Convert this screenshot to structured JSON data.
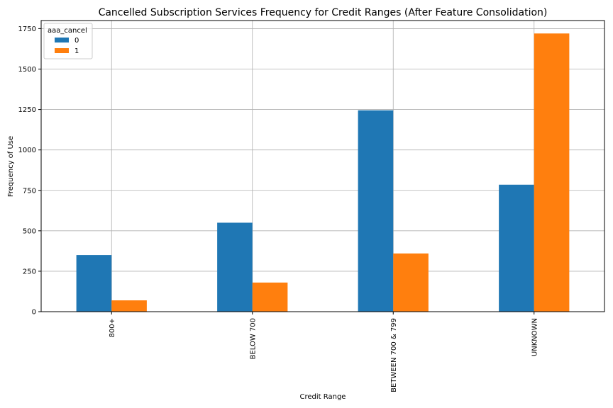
{
  "chart_data": {
    "type": "bar",
    "title": "Cancelled Subscription Services Frequency for Credit Ranges (After Feature Consolidation)",
    "xlabel": "Credit Range",
    "ylabel": "Frequency of Use",
    "categories": [
      "800+",
      "BELOW 700",
      "BETWEEN 700 & 799",
      "UNKNOWN"
    ],
    "series": [
      {
        "name": "0",
        "values": [
          350,
          550,
          1245,
          785
        ],
        "color": "#1f77b4"
      },
      {
        "name": "1",
        "values": [
          70,
          180,
          360,
          1720
        ],
        "color": "#ff7f0e"
      }
    ],
    "ylim": [
      0,
      1800
    ],
    "yticks": [
      0,
      250,
      500,
      750,
      1000,
      1250,
      1500,
      1750
    ],
    "grid": true,
    "legend": {
      "title": "aaa_cancel",
      "placement": "top-left"
    }
  }
}
